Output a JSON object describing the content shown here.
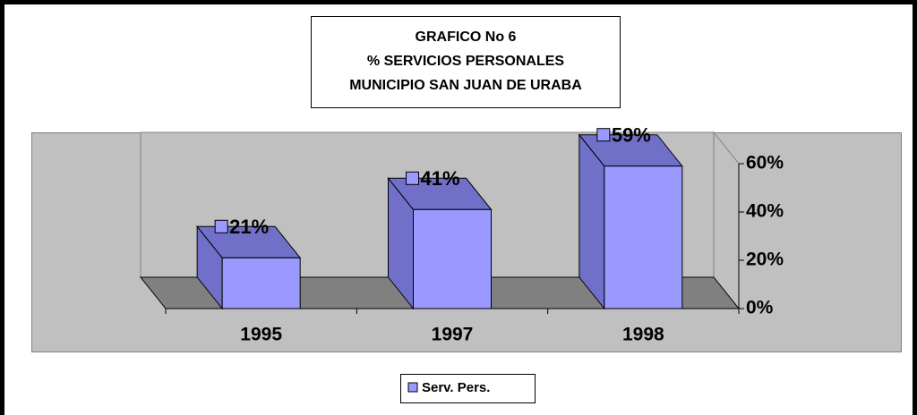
{
  "chart_data": {
    "type": "bar3d",
    "title": [
      "GRAFICO No 6",
      "% SERVICIOS PERSONALES",
      "MUNICIPIO SAN JUAN DE URABA"
    ],
    "categories": [
      "1995",
      "1997",
      "1998"
    ],
    "series": [
      {
        "name": "Serv. Pers.",
        "color": "#9999ff",
        "values": [
          21,
          41,
          59
        ],
        "value_labels": [
          "21%",
          "41%",
          "59%"
        ]
      }
    ],
    "ylim": [
      0,
      60
    ],
    "yticks": [
      {
        "value": 0,
        "label": "0%"
      },
      {
        "value": 20,
        "label": "20%"
      },
      {
        "value": 40,
        "label": "40%"
      },
      {
        "value": 60,
        "label": "60%"
      }
    ],
    "legend": "bottom"
  }
}
